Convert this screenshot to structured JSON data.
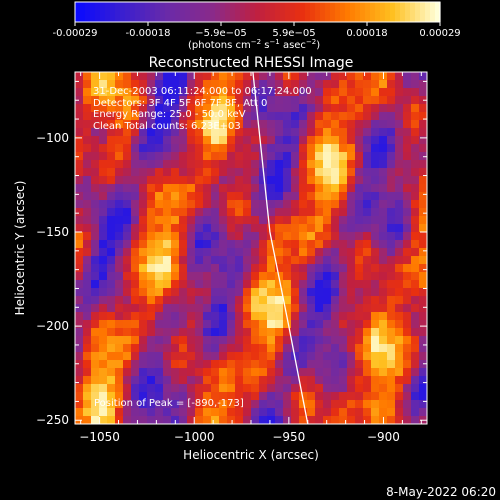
{
  "colorbar": {
    "tick_labels": [
      "-0.00029",
      "-0.00018",
      "−5.9e−05",
      "5.9e−05",
      "0.00018",
      "0.00029"
    ],
    "units_parts": [
      "(photons cm",
      "−2",
      " s",
      "−1",
      " asec",
      "−2",
      ")"
    ],
    "range": [
      -0.00029,
      0.00029
    ],
    "colormap_stops": [
      "#0a0aff",
      "#3a1fd0",
      "#6a2aa8",
      "#8a2a8a",
      "#c02040",
      "#e83010",
      "#ff7a00",
      "#ffc020",
      "#ffffd8"
    ]
  },
  "chart_data": {
    "type": "heatmap",
    "title": "Reconstructed RHESSI Image",
    "xlabel": "Heliocentric X (arcsec)",
    "ylabel": "Heliocentric Y (arcsec)",
    "xlim": [
      -1063,
      -877
    ],
    "ylim": [
      -252,
      -65
    ],
    "xticks": [
      -1050,
      -1000,
      -950,
      -900
    ],
    "yticks": [
      -100,
      -150,
      -200,
      -250
    ],
    "xtick_labels": [
      "−1050",
      "−1000",
      "−950",
      "−900"
    ],
    "ytick_labels": [
      "−100",
      "−150",
      "−200",
      "−250"
    ],
    "limb_line": [
      {
        "x": -969,
        "y": -65
      },
      {
        "x": -960,
        "y": -150
      },
      {
        "x": -950,
        "y": -200
      },
      {
        "x": -940,
        "y": -252
      }
    ],
    "peak": {
      "x": -890,
      "y": -173
    },
    "annotations": [
      "31-Dec-2003 06:11:24.000 to 06:17:24.000",
      "Detectors: 3F 4F 5F 6F 7F 8F, Att 0",
      "Energy Range: 25.0 - 50.0 keV",
      "Clean    Total counts: 6.23E+03"
    ],
    "peak_label": "Position of Peak = [-890,-173]"
  },
  "footer": {
    "date": "8-May-2022 06:20"
  }
}
